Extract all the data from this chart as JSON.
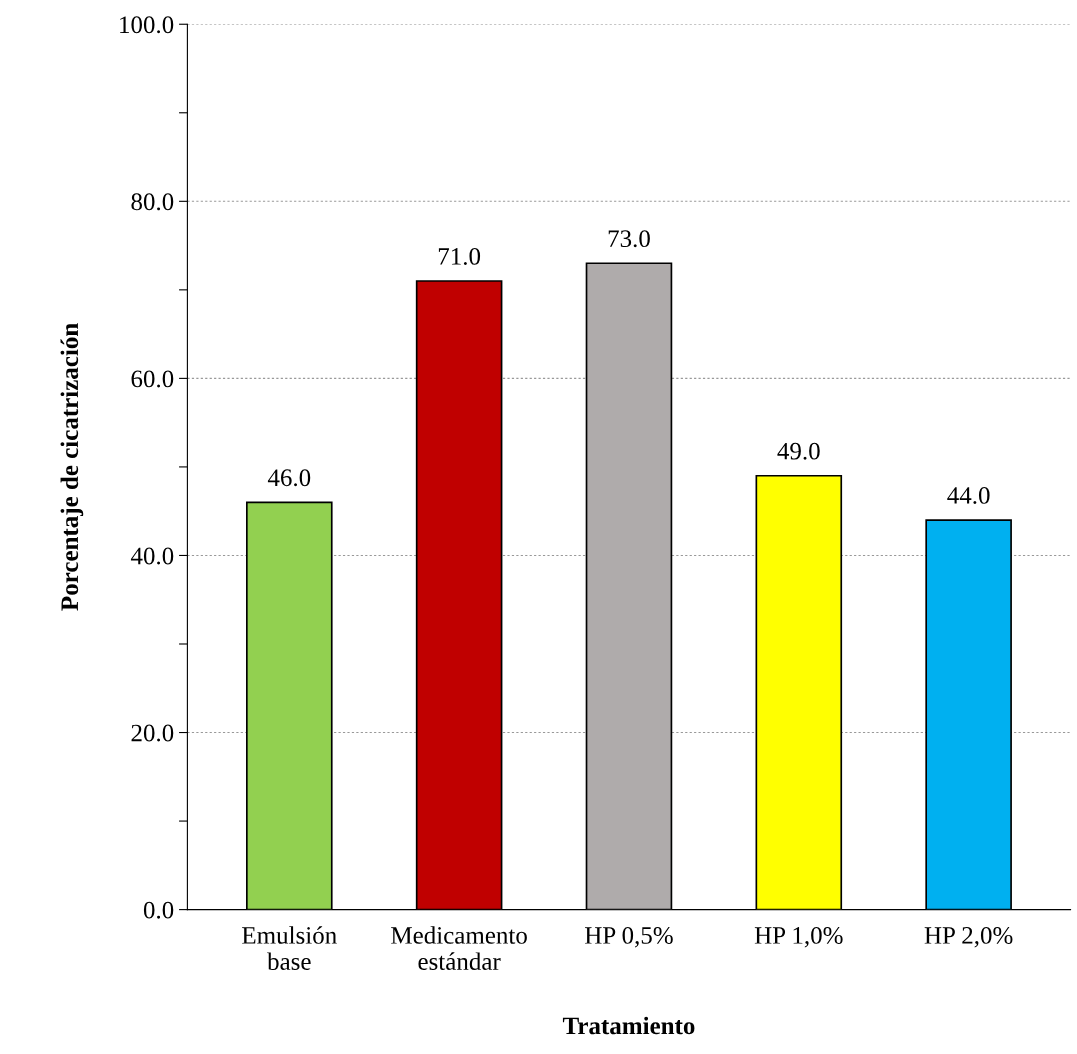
{
  "chart_data": {
    "type": "bar",
    "xlabel": "Tratamiento",
    "ylabel": "Porcentaje de cicatrización",
    "categories": [
      "Emulsión\nbase",
      "Medicamento\nestándar",
      "HP 0,5%",
      "HP 1,0%",
      "HP 2,0%"
    ],
    "values": [
      46.0,
      71.0,
      73.0,
      49.0,
      44.0
    ],
    "colors": [
      "#92d050",
      "#c00000",
      "#afabab",
      "#ffff00",
      "#00b0f0"
    ],
    "value_labels": [
      "46.0",
      "71.0",
      "73.0",
      "49.0",
      "44.0"
    ],
    "ylim": [
      0,
      100
    ],
    "yticks": [
      {
        "value": 0,
        "label": "0.0"
      },
      {
        "value": 10,
        "label": null
      },
      {
        "value": 20,
        "label": "20.0"
      },
      {
        "value": 30,
        "label": null
      },
      {
        "value": 40,
        "label": "40.0"
      },
      {
        "value": 50,
        "label": null
      },
      {
        "value": 60,
        "label": "60.0"
      },
      {
        "value": 70,
        "label": null
      },
      {
        "value": 80,
        "label": "80.0"
      },
      {
        "value": 90,
        "label": null
      },
      {
        "value": 100,
        "label": "100.0"
      }
    ],
    "grid": "y"
  }
}
